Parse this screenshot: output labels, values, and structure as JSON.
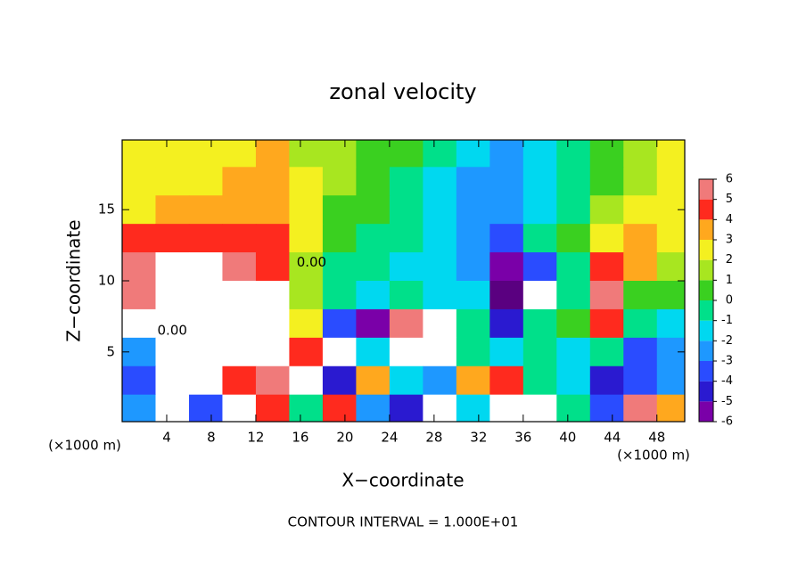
{
  "chart_data": {
    "type": "heatmap",
    "title": "zonal velocity",
    "x_label": "X−coordinate",
    "y_label": "Z−coordinate",
    "x_unit_label": "(×1000 m)",
    "footnote": "CONTOUR INTERVAL = 1.000E+01",
    "xlim": [
      0,
      50.5
    ],
    "ylim": [
      0.1,
      19.9
    ],
    "xticks": [
      4,
      8,
      12,
      16,
      20,
      24,
      28,
      32,
      36,
      40,
      44,
      48
    ],
    "yticks": [
      5,
      10,
      15
    ],
    "x": [
      1.5,
      4.5,
      7.5,
      10.5,
      13.5,
      16.5,
      19.5,
      22.5,
      25.5,
      28.5,
      31.5,
      34.5,
      37.5,
      40.5,
      43.5,
      46.5,
      49.5
    ],
    "y": [
      19,
      17,
      15,
      13,
      11,
      9,
      7,
      5,
      3,
      1
    ],
    "z": [
      [
        2.5,
        2.5,
        2,
        2.5,
        3,
        1.5,
        1,
        0.5,
        0,
        -1,
        -2,
        -2.5,
        -2,
        -1,
        0,
        1,
        2
      ],
      [
        2,
        2.5,
        2.5,
        3,
        3.5,
        2,
        1,
        0.5,
        -0.5,
        -1.5,
        -2.5,
        -3,
        -2,
        -1,
        0,
        1.5,
        2
      ],
      [
        2.5,
        3,
        3,
        3.5,
        3.5,
        2,
        0.5,
        0,
        -1,
        -2,
        -3,
        -3,
        -2,
        -0.5,
        1,
        2,
        2
      ],
      [
        4,
        4,
        4.5,
        4,
        4,
        2,
        0,
        -0.5,
        -1,
        -2,
        -3,
        -3.5,
        -1,
        0.5,
        2.5,
        3,
        2
      ],
      [
        5,
        6,
        7,
        5,
        4,
        1,
        -0.5,
        -1,
        -1.5,
        -2,
        -3,
        -6,
        -4,
        -1,
        4,
        3,
        1.5
      ],
      [
        5,
        7,
        6,
        8,
        6,
        1,
        -1,
        -2,
        -1,
        -1.5,
        -2,
        -7,
        8,
        -0.5,
        5,
        0.5,
        0
      ],
      [
        7,
        8,
        8,
        8,
        6,
        2,
        -4,
        -6,
        5,
        8,
        -1,
        -5,
        -1,
        0,
        4,
        -1,
        -2
      ],
      [
        -3,
        8,
        6,
        7,
        7,
        4,
        7,
        -2,
        6,
        7,
        -1,
        -1.5,
        -1,
        -1.5,
        -1,
        -4,
        -3
      ],
      [
        -4,
        8,
        8,
        4,
        5,
        6,
        -5,
        3,
        -2,
        -3,
        3,
        4,
        -1,
        -2,
        -5,
        -4,
        -3
      ],
      [
        -3,
        6,
        -4,
        8,
        4,
        -1,
        4,
        -3,
        -5,
        6,
        -2,
        8,
        8,
        -1,
        -4,
        5,
        3
      ]
    ],
    "colorbar_ticks": [
      -6,
      -5,
      -4,
      -3,
      -2,
      -1,
      0,
      1,
      2,
      3,
      4,
      5,
      6
    ],
    "colors": [
      "#7a00a8",
      "#2a1ad0",
      "#2a4cff",
      "#1e98ff",
      "#00d8f0",
      "#00e08a",
      "#3ad020",
      "#a8e620",
      "#f4f020",
      "#ffa81e",
      "#ff2a1e",
      "#f07a7a"
    ],
    "under_color": "#5a0080",
    "over_color": "#ffffff",
    "annotations": [
      {
        "text": "0.00",
        "x": 17,
        "y": 11.3
      },
      {
        "text": "0.00",
        "x": 4.5,
        "y": 6.5
      }
    ]
  }
}
